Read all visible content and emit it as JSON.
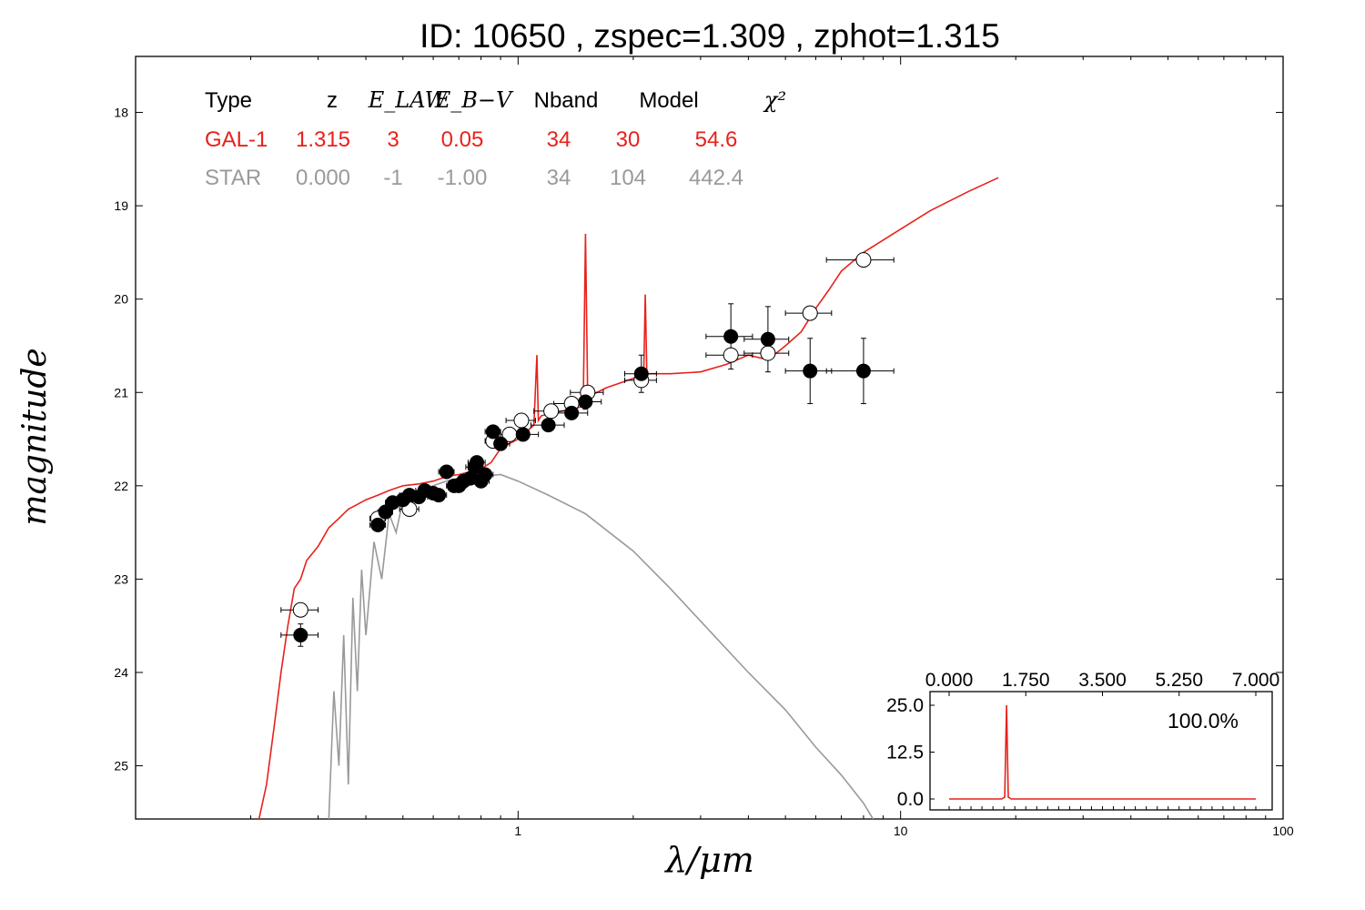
{
  "title": "ID:  10650 , zspec=1.309 , zphot=1.315",
  "chart_data": {
    "type": "scatter",
    "xlabel": "λ/μm",
    "ylabel": "magnitude",
    "xscale": "log",
    "xlim": [
      0.1,
      100
    ],
    "ylim": [
      25.57,
      17.4
    ],
    "y_inverted": true,
    "x_tick_labels": [
      "1",
      "10",
      "100"
    ],
    "x_ticks": [
      1,
      10,
      100
    ],
    "y_ticks": [
      18,
      19,
      20,
      21,
      22,
      23,
      24,
      25
    ],
    "y_tick_labels": [
      "18",
      "19",
      "20",
      "21",
      "22",
      "23",
      "24",
      "25"
    ],
    "grid": false,
    "legend_table": {
      "headers": [
        "Type",
        "z",
        "E_LAW",
        "E_B−V",
        "Nband",
        "Model",
        "χ²"
      ],
      "rows": [
        {
          "color": "#e8211b",
          "cells": [
            "GAL-1",
            "1.315",
            "3",
            "0.05",
            "34",
            "30",
            "54.6"
          ]
        },
        {
          "color": "#9a9a9a",
          "cells": [
            "STAR",
            "0.000",
            "-1",
            "-1.00",
            "34",
            "104",
            "442.4"
          ]
        }
      ]
    },
    "series": [
      {
        "kind": "line",
        "color": "#e8211b",
        "x": [
          0.21,
          0.22,
          0.23,
          0.24,
          0.25,
          0.26,
          0.27,
          0.28,
          0.3,
          0.32,
          0.34,
          0.36,
          0.38,
          0.4,
          0.43,
          0.46,
          0.5,
          0.55,
          0.6,
          0.65,
          0.7,
          0.75,
          0.8,
          0.85,
          0.9,
          1.0,
          1.1,
          1.12,
          1.13,
          1.15,
          1.3,
          1.48,
          1.5,
          1.52,
          1.7,
          2.0,
          2.13,
          2.15,
          2.17,
          2.5,
          3.0,
          3.5,
          4.0,
          4.5,
          5.0,
          5.5,
          6.0,
          6.5,
          7.0,
          8.0,
          10.0,
          12.0,
          15.0,
          18.0
        ],
        "y": [
          25.58,
          25.2,
          24.6,
          24.0,
          23.5,
          23.1,
          23.0,
          22.8,
          22.65,
          22.45,
          22.35,
          22.25,
          22.2,
          22.15,
          22.1,
          22.05,
          22.0,
          21.98,
          21.95,
          21.9,
          21.88,
          21.85,
          21.82,
          21.75,
          21.6,
          21.5,
          21.35,
          20.6,
          21.3,
          21.25,
          21.2,
          21.15,
          19.3,
          21.05,
          20.95,
          20.85,
          20.8,
          19.95,
          20.8,
          20.8,
          20.78,
          20.7,
          20.6,
          20.65,
          20.5,
          20.35,
          20.1,
          19.9,
          19.7,
          19.5,
          19.25,
          19.05,
          18.85,
          18.7
        ]
      },
      {
        "kind": "line",
        "color": "#999999",
        "x": [
          0.32,
          0.33,
          0.34,
          0.35,
          0.36,
          0.37,
          0.38,
          0.39,
          0.4,
          0.42,
          0.44,
          0.46,
          0.48,
          0.5,
          0.55,
          0.6,
          0.65,
          0.7,
          0.8,
          0.9,
          1.0,
          1.2,
          1.5,
          2.0,
          2.5,
          3.0,
          4.0,
          5.0,
          6.0,
          7.0,
          8.0,
          8.5
        ],
        "y": [
          25.58,
          24.2,
          25.0,
          23.6,
          25.2,
          23.2,
          24.2,
          22.9,
          23.6,
          22.6,
          23.0,
          22.3,
          22.5,
          22.15,
          22.05,
          22.0,
          21.95,
          21.92,
          21.9,
          21.88,
          21.95,
          22.1,
          22.3,
          22.7,
          23.1,
          23.45,
          24.0,
          24.4,
          24.8,
          25.1,
          25.4,
          25.58
        ]
      },
      {
        "kind": "points-filled",
        "name": "observed",
        "x": [
          0.27,
          0.43,
          0.45,
          0.47,
          0.5,
          0.52,
          0.55,
          0.57,
          0.6,
          0.62,
          0.65,
          0.68,
          0.7,
          0.72,
          0.75,
          0.77,
          0.78,
          0.8,
          0.82,
          0.86,
          0.9,
          1.03,
          1.2,
          1.38,
          1.5,
          2.1,
          3.6,
          4.5,
          5.8,
          8.0
        ],
        "y": [
          23.6,
          22.42,
          22.28,
          22.18,
          22.15,
          22.1,
          22.12,
          22.05,
          22.08,
          22.1,
          21.85,
          22.0,
          22.0,
          21.95,
          21.92,
          21.8,
          21.75,
          21.95,
          21.88,
          21.42,
          21.55,
          21.45,
          21.35,
          21.22,
          21.1,
          20.8,
          20.4,
          20.43,
          20.77,
          20.77
        ],
        "xerr": [
          0.03,
          0.02,
          0.02,
          0.02,
          0.03,
          0.03,
          0.03,
          0.03,
          0.03,
          0.03,
          0.03,
          0.03,
          0.03,
          0.03,
          0.04,
          0.04,
          0.04,
          0.04,
          0.04,
          0.04,
          0.05,
          0.1,
          0.12,
          0.14,
          0.15,
          0.2,
          0.5,
          0.6,
          0.8,
          1.6
        ],
        "yerr": [
          0.12,
          0.04,
          0.04,
          0.04,
          0.04,
          0.04,
          0.04,
          0.04,
          0.04,
          0.04,
          0.04,
          0.04,
          0.04,
          0.04,
          0.04,
          0.04,
          0.04,
          0.04,
          0.04,
          0.04,
          0.05,
          0.05,
          0.06,
          0.06,
          0.08,
          0.2,
          0.35,
          0.35,
          0.35,
          0.35
        ]
      },
      {
        "kind": "points-open",
        "name": "model",
        "x": [
          0.27,
          0.43,
          0.52,
          0.86,
          0.95,
          1.02,
          1.22,
          1.38,
          1.52,
          2.1,
          3.6,
          4.5,
          5.8,
          8.0
        ],
        "y": [
          23.33,
          22.35,
          22.25,
          21.52,
          21.45,
          21.3,
          21.2,
          21.12,
          21.0,
          20.87,
          20.6,
          20.58,
          20.15,
          19.58
        ],
        "xerr": [
          0.03,
          0.02,
          0.03,
          0.04,
          0.05,
          0.09,
          0.12,
          0.14,
          0.15,
          0.2,
          0.5,
          0.6,
          0.8,
          1.6
        ]
      }
    ],
    "inset": {
      "type": "line",
      "annotation": "100.0%",
      "x_ticks": [
        "0.000",
        "1.750",
        "3.500",
        "5.250",
        "7.000"
      ],
      "y_ticks": [
        "0.0",
        "12.5",
        "25.0"
      ],
      "xlim": [
        0.0,
        7.0
      ],
      "ylim": [
        -2,
        28
      ],
      "color": "#e8211b",
      "x": [
        0.0,
        1.2,
        1.27,
        1.31,
        1.35,
        1.42,
        7.0
      ],
      "y": [
        0.0,
        0.0,
        0.5,
        25.0,
        0.5,
        0.0,
        0.0
      ]
    }
  }
}
